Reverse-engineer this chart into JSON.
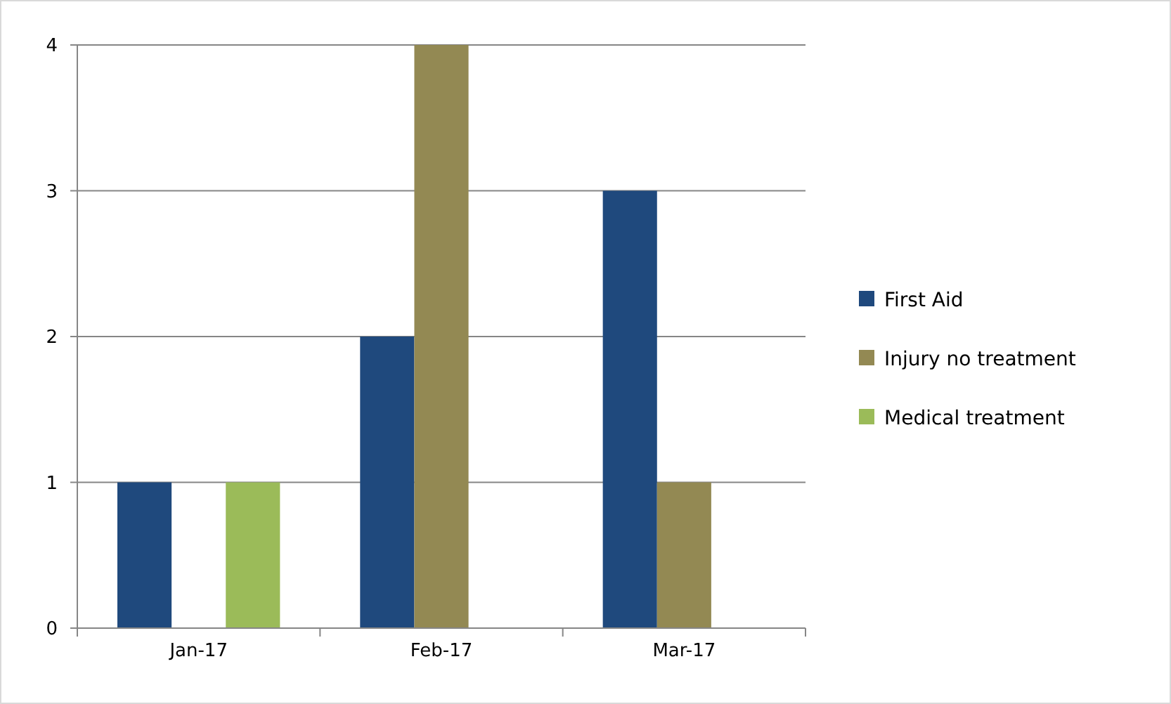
{
  "chart_data": {
    "type": "bar",
    "categories": [
      "Jan-17",
      "Feb-17",
      "Mar-17"
    ],
    "series": [
      {
        "name": "First Aid",
        "color": "#1f497d",
        "values": [
          1,
          2,
          3
        ]
      },
      {
        "name": "Injury no treatment",
        "color": "#938953",
        "values": [
          null,
          4,
          1
        ]
      },
      {
        "name": "Medical treatment",
        "color": "#9bbb59",
        "values": [
          1,
          null,
          null
        ]
      }
    ],
    "ylim": [
      0,
      4
    ],
    "yticks": [
      0,
      1,
      2,
      3,
      4
    ],
    "grid": "y",
    "legend": "right"
  }
}
